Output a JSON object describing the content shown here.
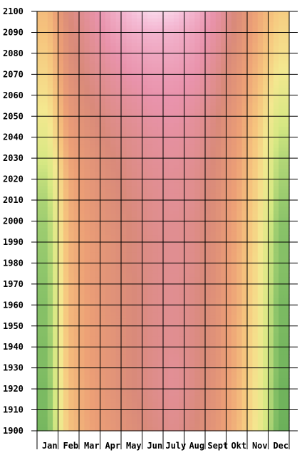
{
  "chart_data": {
    "type": "heatmap",
    "title": "",
    "xlabel": "",
    "ylabel": "",
    "x": [
      "Jan",
      "Feb",
      "Mar",
      "Apr",
      "May",
      "Jun",
      "July",
      "Aug",
      "Sept",
      "Okt",
      "Nov",
      "Dec"
    ],
    "y": [
      1900,
      1910,
      1920,
      1930,
      1940,
      1950,
      1960,
      1970,
      1980,
      1990,
      2000,
      2010,
      2020,
      2030,
      2040,
      2050,
      2060,
      2070,
      2080,
      2090,
      2100
    ],
    "ylim": [
      1900,
      2100
    ],
    "grid": true,
    "legend": "none",
    "color_scale": [
      "#4f9f4c",
      "#8cc46a",
      "#d6e883",
      "#f4e890",
      "#f6c57e",
      "#ec9f76",
      "#d98a7a",
      "#e993ac",
      "#f5bcd6",
      "#fdf0fa"
    ],
    "values": [
      [
        0.07,
        0.45,
        0.54,
        0.59,
        0.64,
        0.68,
        0.71,
        0.67,
        0.6,
        0.49,
        0.32,
        0.05
      ],
      [
        0.08,
        0.46,
        0.55,
        0.6,
        0.65,
        0.69,
        0.72,
        0.68,
        0.61,
        0.5,
        0.33,
        0.06
      ],
      [
        0.08,
        0.46,
        0.55,
        0.61,
        0.66,
        0.7,
        0.73,
        0.69,
        0.61,
        0.5,
        0.33,
        0.06
      ],
      [
        0.09,
        0.47,
        0.56,
        0.61,
        0.66,
        0.7,
        0.73,
        0.69,
        0.62,
        0.51,
        0.34,
        0.07
      ],
      [
        0.09,
        0.47,
        0.56,
        0.61,
        0.66,
        0.7,
        0.72,
        0.69,
        0.62,
        0.51,
        0.34,
        0.07
      ],
      [
        0.1,
        0.48,
        0.56,
        0.61,
        0.66,
        0.7,
        0.72,
        0.69,
        0.62,
        0.51,
        0.35,
        0.08
      ],
      [
        0.1,
        0.48,
        0.56,
        0.62,
        0.66,
        0.7,
        0.72,
        0.69,
        0.62,
        0.52,
        0.35,
        0.08
      ],
      [
        0.11,
        0.48,
        0.57,
        0.62,
        0.66,
        0.7,
        0.72,
        0.69,
        0.63,
        0.52,
        0.36,
        0.09
      ],
      [
        0.12,
        0.49,
        0.57,
        0.62,
        0.67,
        0.7,
        0.72,
        0.7,
        0.63,
        0.52,
        0.36,
        0.1
      ],
      [
        0.13,
        0.49,
        0.57,
        0.62,
        0.67,
        0.7,
        0.72,
        0.7,
        0.63,
        0.53,
        0.37,
        0.1
      ],
      [
        0.14,
        0.5,
        0.58,
        0.63,
        0.67,
        0.71,
        0.72,
        0.7,
        0.64,
        0.53,
        0.38,
        0.11
      ],
      [
        0.16,
        0.51,
        0.59,
        0.64,
        0.68,
        0.71,
        0.73,
        0.71,
        0.64,
        0.54,
        0.39,
        0.13
      ],
      [
        0.19,
        0.52,
        0.6,
        0.65,
        0.69,
        0.72,
        0.73,
        0.71,
        0.65,
        0.55,
        0.4,
        0.15
      ],
      [
        0.23,
        0.54,
        0.61,
        0.66,
        0.7,
        0.73,
        0.74,
        0.72,
        0.66,
        0.56,
        0.41,
        0.17
      ],
      [
        0.28,
        0.56,
        0.63,
        0.68,
        0.71,
        0.74,
        0.75,
        0.73,
        0.67,
        0.57,
        0.42,
        0.2
      ],
      [
        0.32,
        0.58,
        0.65,
        0.7,
        0.73,
        0.76,
        0.77,
        0.74,
        0.68,
        0.58,
        0.44,
        0.24
      ],
      [
        0.36,
        0.6,
        0.67,
        0.72,
        0.75,
        0.78,
        0.78,
        0.76,
        0.7,
        0.6,
        0.46,
        0.28
      ],
      [
        0.39,
        0.62,
        0.69,
        0.74,
        0.78,
        0.8,
        0.8,
        0.78,
        0.71,
        0.61,
        0.48,
        0.32
      ],
      [
        0.42,
        0.64,
        0.71,
        0.77,
        0.81,
        0.83,
        0.83,
        0.8,
        0.73,
        0.63,
        0.5,
        0.36
      ],
      [
        0.45,
        0.65,
        0.73,
        0.8,
        0.85,
        0.87,
        0.86,
        0.82,
        0.75,
        0.65,
        0.52,
        0.39
      ],
      [
        0.47,
        0.67,
        0.75,
        0.83,
        0.9,
        0.95,
        0.93,
        0.86,
        0.77,
        0.66,
        0.53,
        0.42
      ]
    ]
  }
}
